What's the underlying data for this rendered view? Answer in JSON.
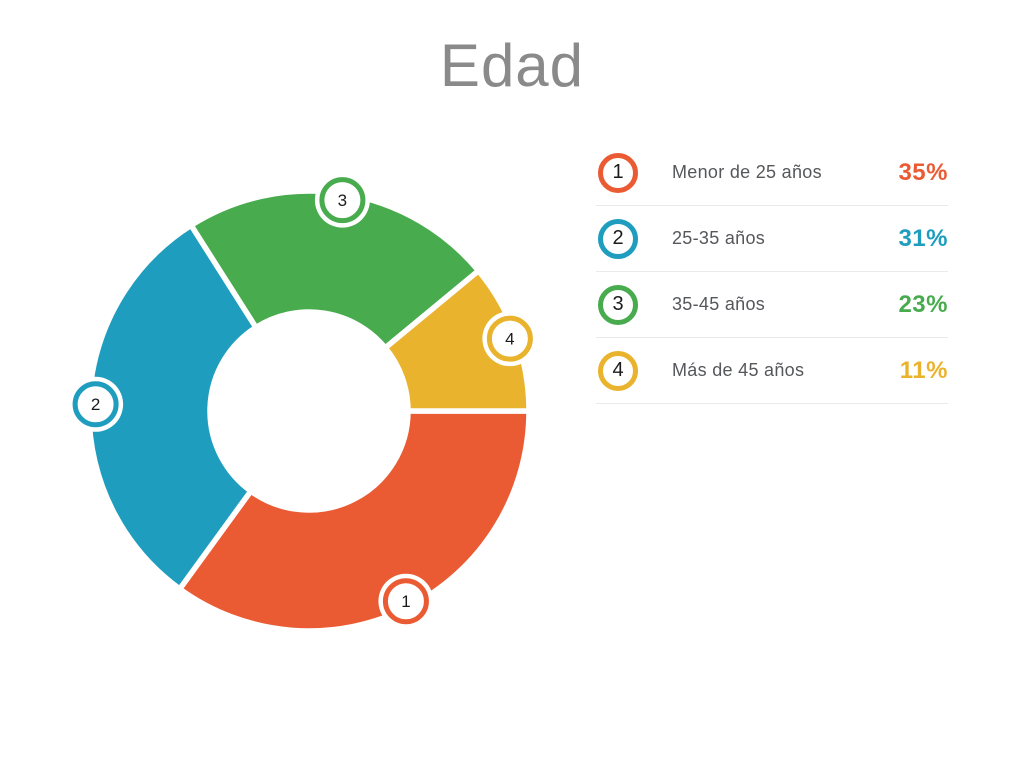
{
  "chart_data": {
    "type": "pie",
    "subtype": "donut",
    "title": "Edad",
    "categories": [
      "Menor de 25 años",
      "25-35 años",
      "35-45 años",
      "Más de 45 años"
    ],
    "values": [
      35,
      31,
      23,
      11
    ],
    "value_labels": [
      "35%",
      "31%",
      "23%",
      "11%"
    ],
    "segment_numbers": [
      "1",
      "2",
      "3",
      "4"
    ],
    "colors": [
      "#EA5B33",
      "#1E9DBE",
      "#48AB4D",
      "#EAB32D"
    ],
    "start_angle_deg": 0,
    "direction": "clockwise",
    "inner_radius_ratio": 0.45,
    "segment_gaps": true,
    "marker_style": "numbered-circle-on-rim",
    "legend_position": "right",
    "title_color": "#8A8A8A",
    "label_color": "#56575B"
  }
}
